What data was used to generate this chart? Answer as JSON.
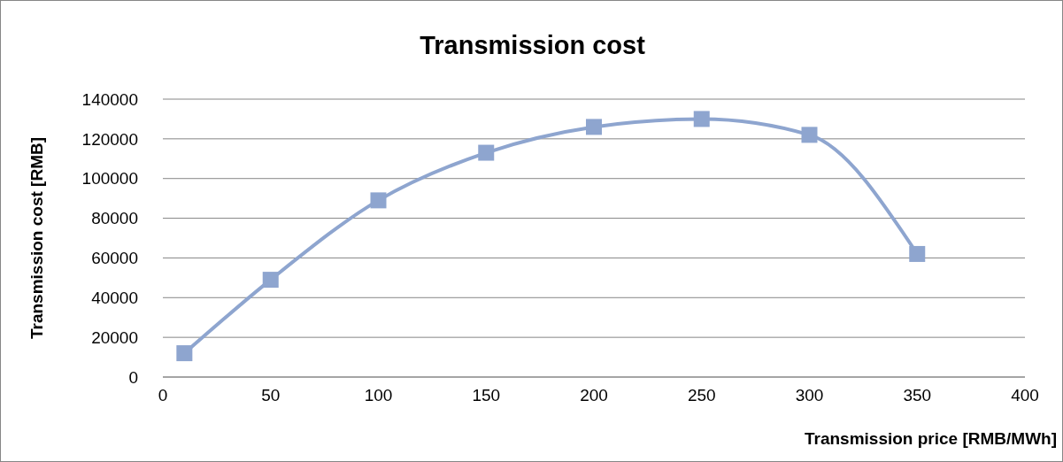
{
  "chart_data": {
    "type": "line",
    "title": "Transmission cost",
    "xlabel": "Transmission price [RMB/MWh]",
    "ylabel": "Transmission cost [RMB]",
    "x": [
      10,
      50,
      100,
      150,
      200,
      250,
      300,
      350
    ],
    "series": [
      {
        "color": "#8ea5cf",
        "values": [
          12000,
          49000,
          89000,
          113000,
          126000,
          130000,
          122000,
          62000
        ]
      }
    ],
    "xlim": [
      0,
      400
    ],
    "xticks": [
      0,
      50,
      100,
      150,
      200,
      250,
      300,
      350,
      400
    ],
    "ylim": [
      0,
      140000
    ],
    "yticks": [
      0,
      20000,
      40000,
      60000,
      80000,
      100000,
      120000,
      140000
    ],
    "grid": "y",
    "marker": "square",
    "line_style": "solid"
  }
}
